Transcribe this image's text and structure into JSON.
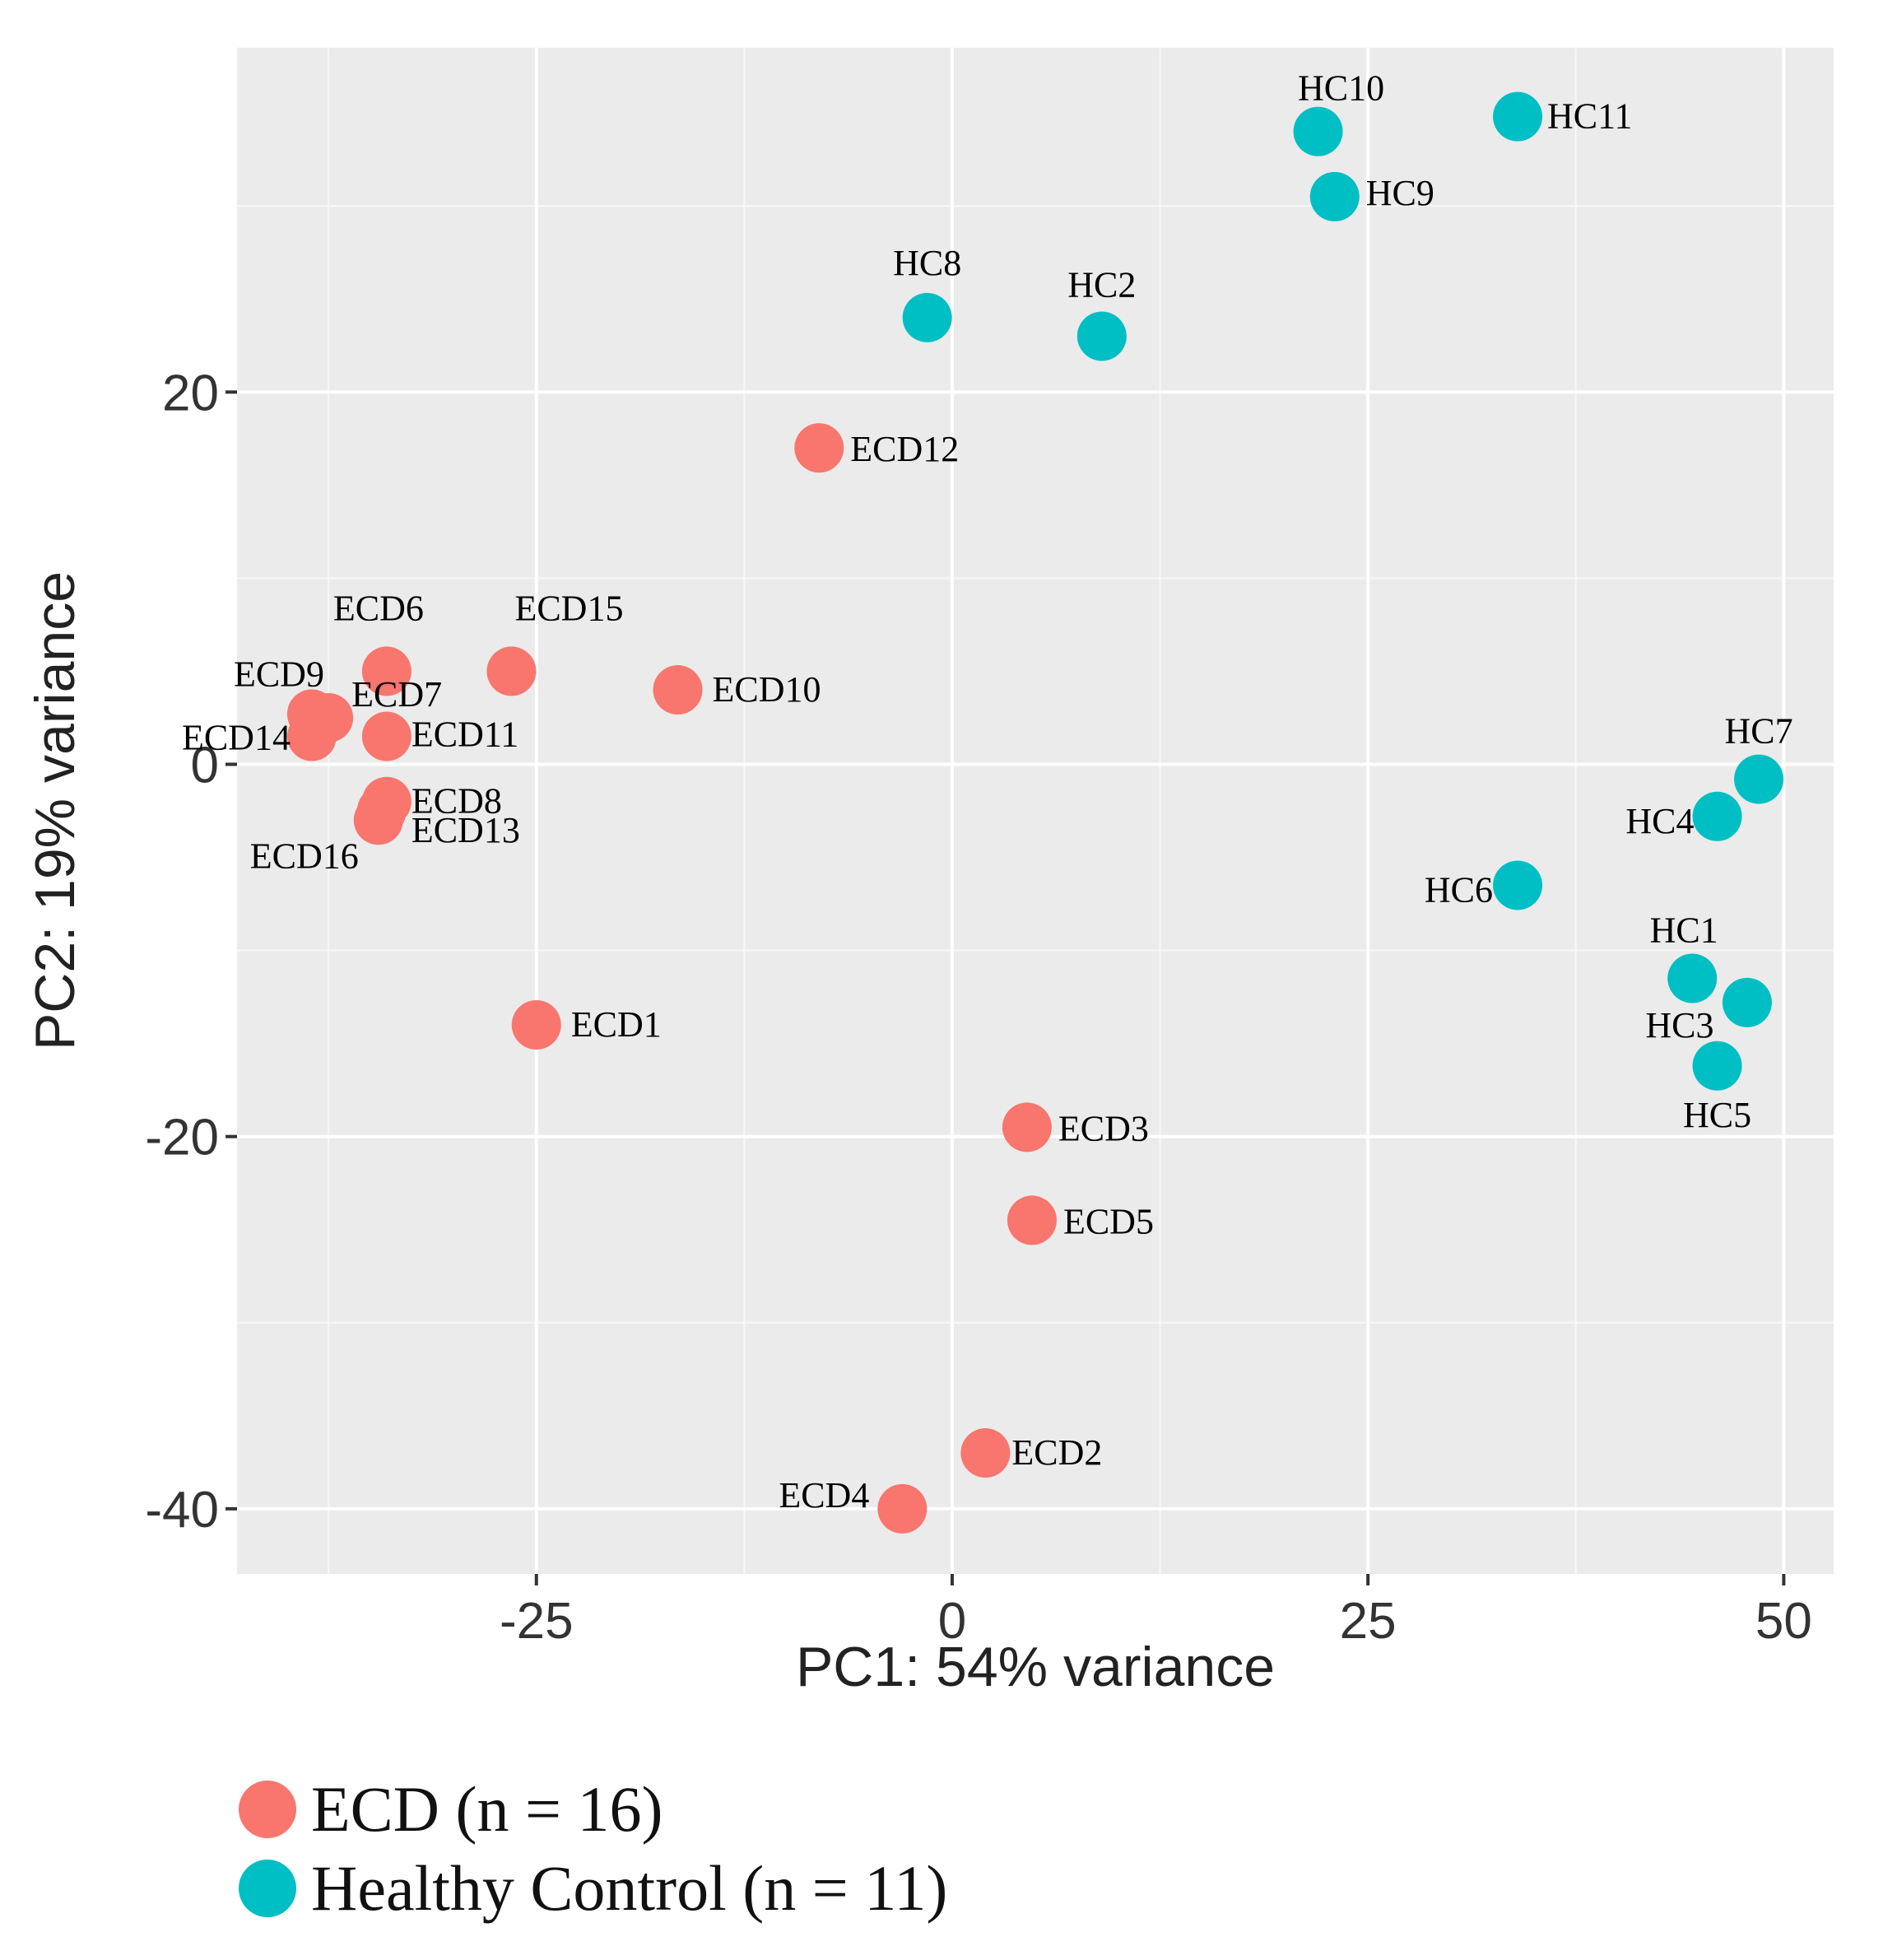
{
  "chart_data": {
    "type": "scatter",
    "xlabel": "PC1: 54% variance",
    "ylabel": "PC2: 19% variance",
    "xlim": [
      -43,
      53
    ],
    "ylim": [
      -43.5,
      38.5
    ],
    "x_ticks": [
      -25,
      0,
      25,
      50
    ],
    "y_ticks": [
      -40,
      -20,
      0,
      20
    ],
    "x_tick_labels": [
      "-25",
      "0",
      "25",
      "50"
    ],
    "y_tick_labels": [
      "-40",
      "-20",
      "0",
      "20"
    ],
    "grid": true,
    "legend_position": "bottom-left",
    "series": [
      {
        "name": "ECD",
        "legend_label": "ECD (n = 16)",
        "n": 16,
        "color": "#F8766D",
        "points": [
          {
            "label": "ECD1",
            "x": -25.0,
            "y": -14.0
          },
          {
            "label": "ECD2",
            "x": 2.0,
            "y": -37.0
          },
          {
            "label": "ECD3",
            "x": 4.5,
            "y": -19.5
          },
          {
            "label": "ECD4",
            "x": -3.0,
            "y": -40.0
          },
          {
            "label": "ECD5",
            "x": 4.8,
            "y": -24.5
          },
          {
            "label": "ECD6",
            "x": -34.0,
            "y": 5.0
          },
          {
            "label": "ECD7",
            "x": -37.5,
            "y": 2.5
          },
          {
            "label": "ECD8",
            "x": -34.0,
            "y": -2.0
          },
          {
            "label": "ECD9",
            "x": -38.5,
            "y": 2.7
          },
          {
            "label": "ECD10",
            "x": -16.5,
            "y": 4.0
          },
          {
            "label": "ECD11",
            "x": -34.0,
            "y": 1.5
          },
          {
            "label": "ECD12",
            "x": -8.0,
            "y": 17.0
          },
          {
            "label": "ECD13",
            "x": -34.3,
            "y": -2.5
          },
          {
            "label": "ECD14",
            "x": -38.5,
            "y": 1.5
          },
          {
            "label": "ECD15",
            "x": -26.5,
            "y": 5.0
          },
          {
            "label": "ECD16",
            "x": -34.5,
            "y": -3.0
          }
        ]
      },
      {
        "name": "Healthy Control",
        "legend_label": "Healthy Control (n = 11)",
        "n": 11,
        "color": "#00BFC4",
        "points": [
          {
            "label": "HC1",
            "x": 44.5,
            "y": -11.5
          },
          {
            "label": "HC2",
            "x": 9.0,
            "y": 23.0
          },
          {
            "label": "HC3",
            "x": 47.8,
            "y": -12.8
          },
          {
            "label": "HC4",
            "x": 46.0,
            "y": -2.8
          },
          {
            "label": "HC5",
            "x": 46.0,
            "y": -16.2
          },
          {
            "label": "HC6",
            "x": 34.0,
            "y": -6.5
          },
          {
            "label": "HC7",
            "x": 48.5,
            "y": -0.8
          },
          {
            "label": "HC8",
            "x": -1.5,
            "y": 24.0
          },
          {
            "label": "HC9",
            "x": 23.0,
            "y": 30.5
          },
          {
            "label": "HC10",
            "x": 22.0,
            "y": 34.0
          },
          {
            "label": "HC11",
            "x": 34.0,
            "y": 34.8
          }
        ]
      }
    ]
  }
}
